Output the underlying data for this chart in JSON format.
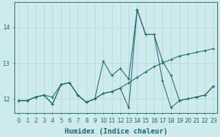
{
  "xlabel": "Humidex (Indice chaleur)",
  "background_color": "#ceeaec",
  "grid_color": "#afd4d8",
  "line_color": "#1a6b6b",
  "xlim": [
    -0.5,
    23.5
  ],
  "ylim": [
    11.6,
    14.7
  ],
  "yticks": [
    12,
    13,
    14
  ],
  "xticks": [
    0,
    1,
    2,
    3,
    4,
    5,
    6,
    7,
    8,
    9,
    10,
    11,
    12,
    13,
    14,
    15,
    16,
    17,
    18,
    19,
    20,
    21,
    22,
    23
  ],
  "series1_x": [
    0,
    1,
    2,
    3,
    4,
    5,
    6,
    7,
    8,
    9,
    10,
    11,
    12,
    13,
    14,
    15,
    16,
    17,
    18,
    19,
    20,
    21,
    22,
    23
  ],
  "series1_y": [
    11.95,
    11.95,
    12.05,
    12.1,
    12.05,
    12.4,
    12.45,
    12.1,
    11.9,
    12.0,
    12.15,
    12.2,
    12.3,
    12.45,
    12.6,
    12.75,
    12.9,
    13.0,
    13.1,
    13.2,
    13.25,
    13.3,
    13.35,
    13.4
  ],
  "series2_x": [
    0,
    1,
    2,
    3,
    4,
    5,
    6,
    7,
    8,
    9,
    10,
    11,
    12,
    13,
    14,
    15,
    16,
    17,
    18,
    19,
    20,
    21,
    22,
    23
  ],
  "series2_y": [
    11.95,
    11.95,
    12.05,
    12.1,
    11.85,
    12.4,
    12.45,
    12.1,
    11.9,
    12.0,
    13.05,
    12.65,
    12.85,
    12.55,
    14.5,
    13.8,
    13.8,
    13.05,
    12.65,
    11.95,
    12.0,
    12.05,
    12.1,
    12.35
  ],
  "series3_x": [
    0,
    1,
    2,
    3,
    4,
    5,
    6,
    7,
    8,
    9,
    10,
    11,
    12,
    13,
    14,
    15,
    16,
    17,
    18,
    19,
    20,
    21,
    22,
    23
  ],
  "series3_y": [
    11.95,
    11.95,
    12.05,
    12.1,
    11.85,
    12.4,
    12.45,
    12.1,
    11.9,
    12.0,
    12.15,
    12.2,
    12.3,
    11.75,
    14.5,
    13.8,
    13.8,
    12.5,
    11.75,
    11.95,
    12.0,
    12.05,
    12.1,
    12.35
  ],
  "tick_fontsize": 6,
  "xlabel_fontsize": 7.5
}
